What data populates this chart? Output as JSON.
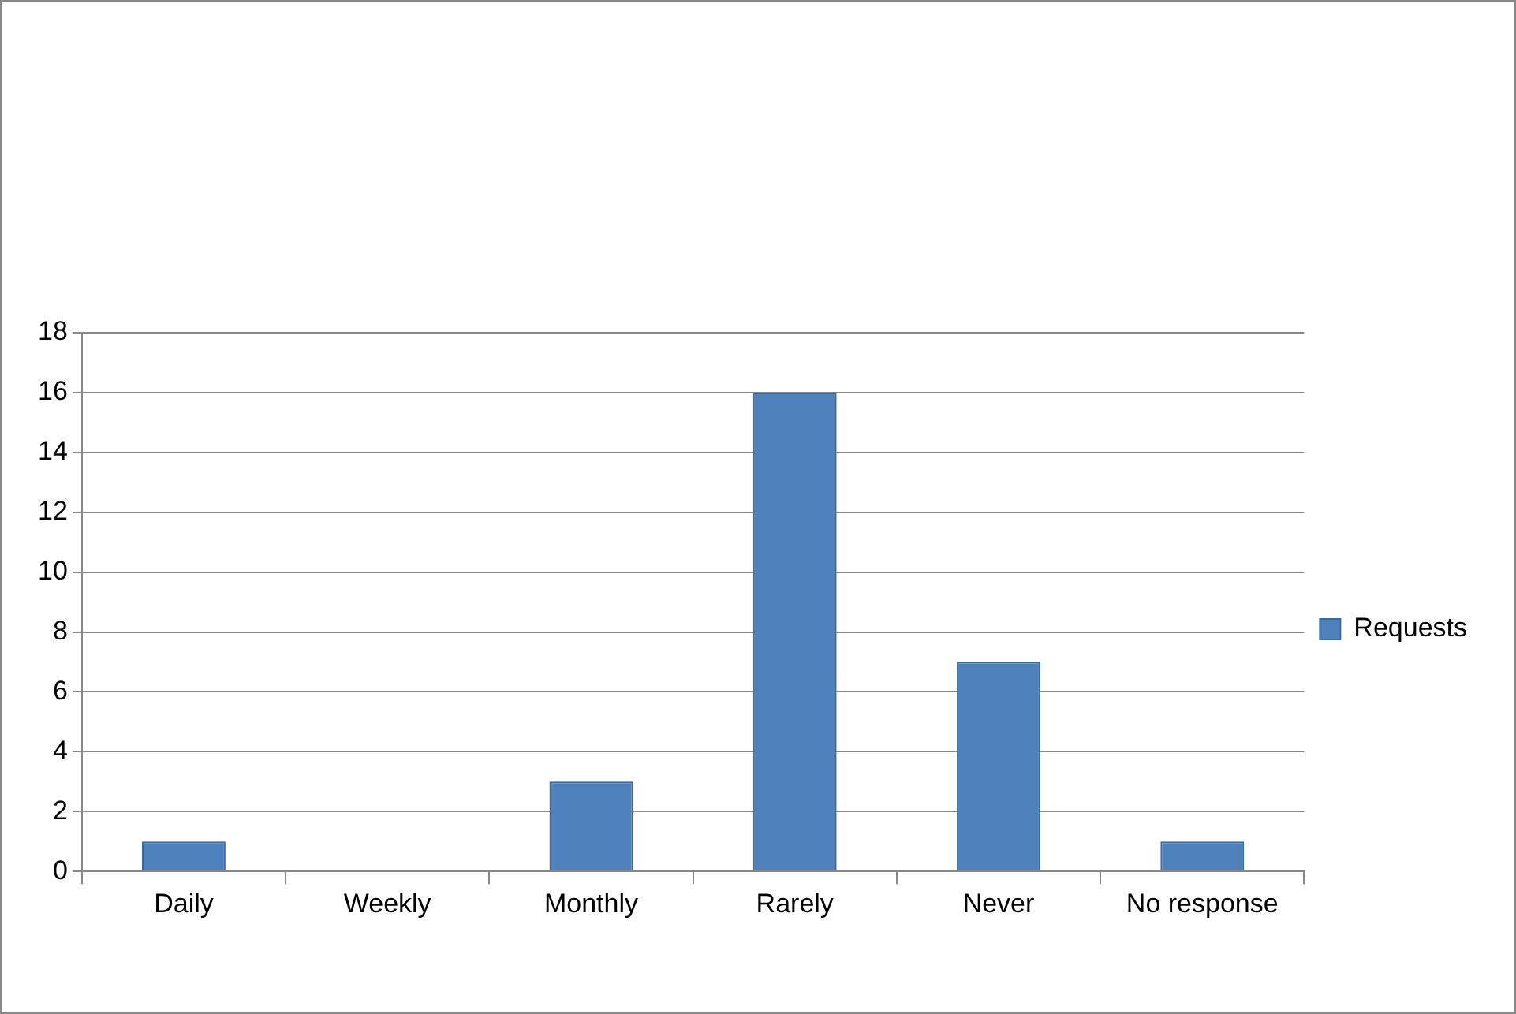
{
  "chart_data": {
    "type": "bar",
    "categories": [
      "Daily",
      "Weekly",
      "Monthly",
      "Rarely",
      "Never",
      "No response"
    ],
    "series": [
      {
        "name": "Requests",
        "color": "#4f81bd",
        "values": [
          1,
          0,
          3,
          16,
          7,
          1
        ]
      }
    ],
    "ylim": [
      0,
      18
    ],
    "yticks": [
      0,
      2,
      4,
      6,
      8,
      10,
      12,
      14,
      16,
      18
    ],
    "grid": "y",
    "legend": "right"
  }
}
